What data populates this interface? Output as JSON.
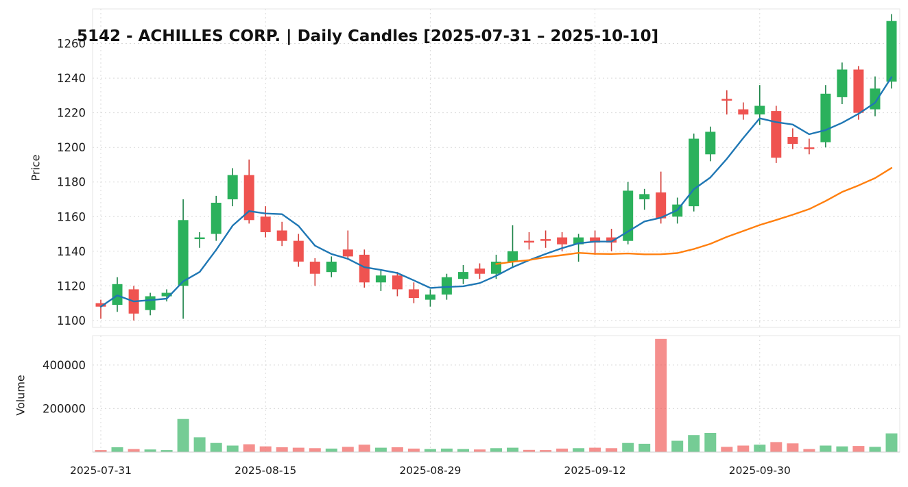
{
  "title": "5142 - ACHILLES CORP. | Daily Candles [2025-07-31 – 2025-10-10]",
  "axes": {
    "price_label": "Price",
    "volume_label": "Volume"
  },
  "chart_data": {
    "type": "candlestick",
    "panels": [
      "price",
      "volume"
    ],
    "legend_position": "none",
    "grid": true,
    "dates": [
      "2025-07-31",
      "2025-08-01",
      "2025-08-04",
      "2025-08-05",
      "2025-08-06",
      "2025-08-07",
      "2025-08-08",
      "2025-08-12",
      "2025-08-13",
      "2025-08-14",
      "2025-08-15",
      "2025-08-18",
      "2025-08-19",
      "2025-08-20",
      "2025-08-21",
      "2025-08-22",
      "2025-08-25",
      "2025-08-26",
      "2025-08-27",
      "2025-08-28",
      "2025-08-29",
      "2025-09-01",
      "2025-09-02",
      "2025-09-03",
      "2025-09-04",
      "2025-09-05",
      "2025-09-08",
      "2025-09-09",
      "2025-09-10",
      "2025-09-11",
      "2025-09-12",
      "2025-09-16",
      "2025-09-17",
      "2025-09-18",
      "2025-09-19",
      "2025-09-22",
      "2025-09-24",
      "2025-09-25",
      "2025-09-26",
      "2025-09-29",
      "2025-09-30",
      "2025-10-01",
      "2025-10-02",
      "2025-10-03",
      "2025-10-06",
      "2025-10-07",
      "2025-10-08",
      "2025-10-09",
      "2025-10-10"
    ],
    "open": [
      1110,
      1109,
      1118,
      1106,
      1114,
      1120,
      1147,
      1150,
      1170,
      1184,
      1160,
      1152,
      1146,
      1134,
      1128,
      1141,
      1138,
      1122,
      1126,
      1118,
      1112,
      1115,
      1124,
      1130,
      1127,
      1134,
      1146,
      1147,
      1148,
      1144,
      1148,
      1148,
      1146,
      1170,
      1174,
      1160,
      1166,
      1196,
      1228,
      1222,
      1219,
      1221,
      1206,
      1200,
      1203,
      1229,
      1245,
      1222,
      1238
    ],
    "high": [
      1112,
      1125,
      1120,
      1116,
      1118,
      1170,
      1151,
      1172,
      1188,
      1193,
      1166,
      1157,
      1150,
      1136,
      1137,
      1152,
      1141,
      1129,
      1128,
      1122,
      1118,
      1127,
      1132,
      1133,
      1138,
      1155,
      1151,
      1152,
      1151,
      1150,
      1152,
      1153,
      1180,
      1176,
      1186,
      1171,
      1208,
      1212,
      1233,
      1226,
      1236,
      1224,
      1211,
      1205,
      1236,
      1249,
      1247,
      1241,
      1277
    ],
    "low": [
      1101,
      1105,
      1100,
      1103,
      1111,
      1101,
      1142,
      1146,
      1166,
      1156,
      1148,
      1143,
      1131,
      1120,
      1125,
      1135,
      1119,
      1117,
      1114,
      1110,
      1108,
      1112,
      1121,
      1124,
      1124,
      1131,
      1141,
      1142,
      1140,
      1134,
      1138,
      1140,
      1144,
      1164,
      1156,
      1156,
      1163,
      1192,
      1219,
      1216,
      1213,
      1191,
      1199,
      1196,
      1200,
      1225,
      1216,
      1218,
      1234
    ],
    "close": [
      1108,
      1121,
      1104,
      1114,
      1116,
      1158,
      1148,
      1168,
      1184,
      1158,
      1151,
      1146,
      1134,
      1127,
      1134,
      1137,
      1122,
      1126,
      1118,
      1113,
      1115,
      1125,
      1128,
      1127,
      1134,
      1140,
      1145,
      1146,
      1144,
      1148,
      1145,
      1145,
      1175,
      1173,
      1159,
      1167,
      1205,
      1209,
      1227,
      1219,
      1224,
      1194,
      1202,
      1199,
      1231,
      1245,
      1220,
      1234,
      1273
    ],
    "volume": [
      9000,
      22000,
      14000,
      12000,
      9000,
      152000,
      68000,
      42000,
      30000,
      36000,
      26000,
      22000,
      20000,
      18000,
      16000,
      24000,
      34000,
      20000,
      22000,
      16000,
      14000,
      16000,
      14000,
      12000,
      18000,
      20000,
      10000,
      9000,
      16000,
      18000,
      20000,
      18000,
      42000,
      38000,
      520000,
      52000,
      78000,
      88000,
      24000,
      30000,
      34000,
      46000,
      40000,
      14000,
      30000,
      26000,
      28000,
      24000,
      86000
    ],
    "overlays": [
      {
        "name": "ma-short",
        "window": 5,
        "min_periods": 1,
        "color": "#1f77b4"
      },
      {
        "name": "ma-long",
        "window": 25,
        "min_periods": 25,
        "color": "#ff7f0e"
      }
    ],
    "price_ticks": [
      1100,
      1120,
      1140,
      1160,
      1180,
      1200,
      1220,
      1240,
      1260
    ],
    "volume_ticks": [
      200000,
      400000
    ],
    "x_tick_indices": [
      0,
      10,
      20,
      30,
      40
    ],
    "x_tick_labels": [
      "2025-07-31",
      "2025-08-15",
      "2025-08-29",
      "2025-09-12",
      "2025-09-30"
    ],
    "price_range": [
      1096,
      1280
    ],
    "volume_range": [
      0,
      535000
    ],
    "ylabel_price": "Price",
    "ylabel_volume": "Volume",
    "colors": {
      "up": "#2bb15c",
      "down": "#ef5350",
      "up_wick": "#1e8449",
      "down_wick": "#d43f3a",
      "ma_short": "#1f77b4",
      "ma_long": "#ff7f0e",
      "grid": "#d9d9d9",
      "spine": "#cccccc",
      "text": "#1a1a1a"
    }
  }
}
